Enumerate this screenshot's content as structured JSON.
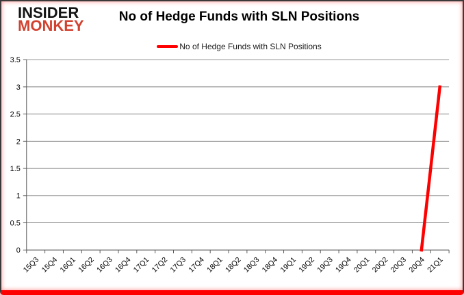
{
  "logo": {
    "line1": "INSIDER",
    "line2": "MONKEY",
    "line1_color": "#141414",
    "line2_color": "#d24230"
  },
  "title": "No of Hedge Funds with SLN Positions",
  "legend": {
    "label": "No of Hedge Funds with SLN Positions",
    "line_color": "#fe0000"
  },
  "colors": {
    "series_red": "#fe0000",
    "gridline": "#808080",
    "axis": "#595959",
    "label_text": "#000000",
    "frame_border": "#3a3a3a",
    "frame_bottom_bar": "#fe0000"
  },
  "chart_data": {
    "type": "line",
    "title": "No of Hedge Funds with SLN Positions",
    "xlabel": "",
    "ylabel": "",
    "categories": [
      "15Q3",
      "15Q4",
      "16Q1",
      "16Q2",
      "16Q3",
      "16Q4",
      "17Q1",
      "17Q2",
      "17Q3",
      "17Q4",
      "18Q1",
      "18Q2",
      "18Q3",
      "18Q4",
      "19Q1",
      "19Q2",
      "19Q3",
      "19Q4",
      "20Q1",
      "20Q2",
      "20Q3",
      "20Q4",
      "21Q1"
    ],
    "series": [
      {
        "name": "No of Hedge Funds with SLN Positions",
        "color": "#fe0000",
        "values": [
          null,
          null,
          null,
          null,
          null,
          null,
          null,
          null,
          null,
          null,
          null,
          null,
          null,
          null,
          null,
          null,
          null,
          null,
          null,
          null,
          null,
          0,
          3
        ]
      }
    ],
    "ylim": [
      0,
      3.5
    ],
    "yticks": [
      0,
      0.5,
      1,
      1.5,
      2,
      2.5,
      3,
      3.5
    ],
    "grid": "horizontal",
    "legend_position": "top"
  }
}
